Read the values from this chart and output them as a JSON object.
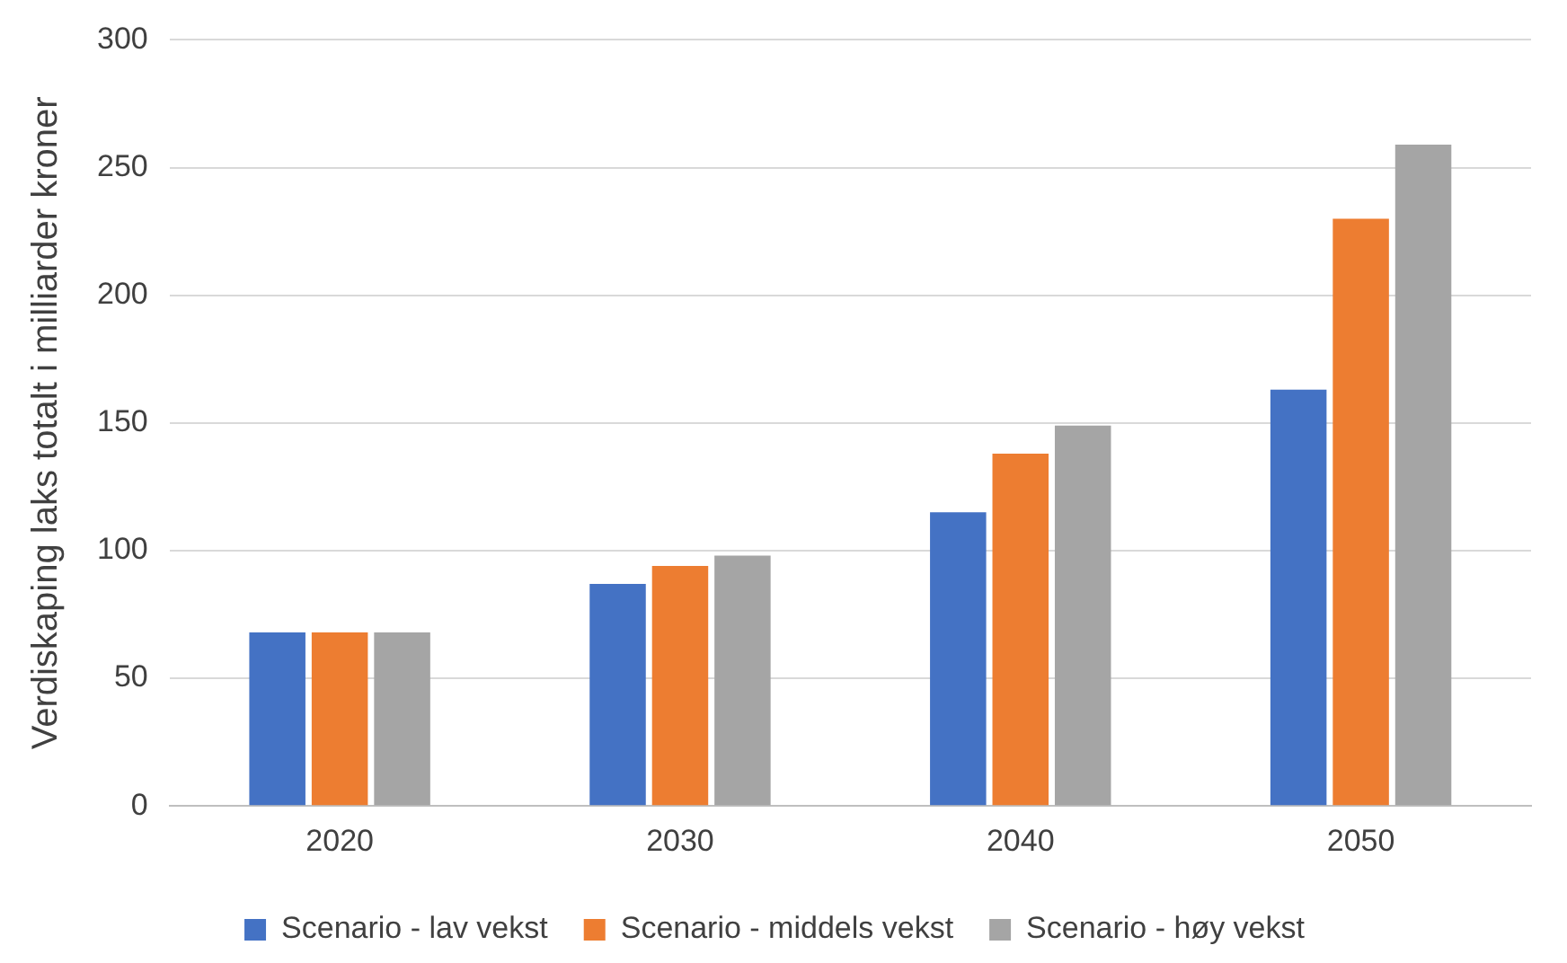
{
  "chart_data": {
    "type": "bar",
    "ylabel": "Verdiskaping laks totalt i milliarder kroner",
    "categories": [
      "2020",
      "2030",
      "2040",
      "2050"
    ],
    "series": [
      {
        "name": "Scenario - lav vekst",
        "color": "#4472c4",
        "values": [
          68,
          87,
          115,
          163
        ]
      },
      {
        "name": "Scenario - middels vekst",
        "color": "#ed7d31",
        "values": [
          68,
          94,
          138,
          230
        ]
      },
      {
        "name": "Scenario - høy vekst",
        "color": "#a5a5a5",
        "values": [
          68,
          98,
          149,
          259
        ]
      }
    ],
    "ylim": [
      0,
      300
    ],
    "yticks": [
      0,
      50,
      100,
      150,
      200,
      250,
      300
    ],
    "grid": "y",
    "legend": "bottom"
  }
}
